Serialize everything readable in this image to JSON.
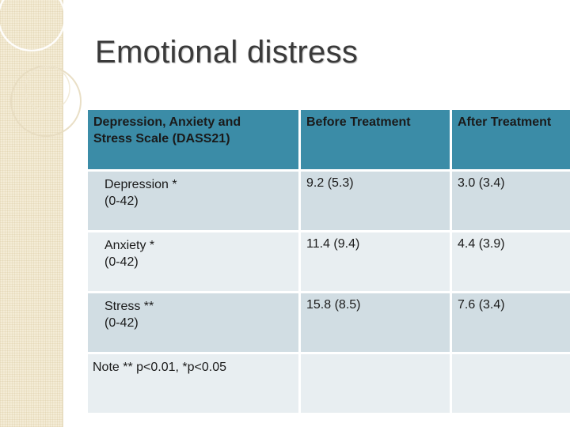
{
  "slide": {
    "title": "Emotional distress"
  },
  "table": {
    "headers": [
      [
        "Depression, Anxiety and",
        "Stress Scale (DASS21)"
      ],
      [
        "Before Treatment"
      ],
      [
        "After Treatment"
      ]
    ],
    "rows": [
      {
        "label": [
          "Depression *",
          "(0-42)"
        ],
        "before": "9.2 (5.3)",
        "after": "3.0 (3.4)"
      },
      {
        "label": [
          "Anxiety *",
          "(0-42)"
        ],
        "before": "11.4 (9.4)",
        "after": "4.4 (3.9)"
      },
      {
        "label": [
          "Stress **",
          "(0-42)"
        ],
        "before": "15.8 (8.5)",
        "after": "7.6 (3.4)"
      }
    ],
    "note": "Note   ** p<0.01, *p<0.05"
  },
  "colors": {
    "header_bg": "#3b8ca7",
    "row_dark": "#d1dde3",
    "row_light": "#e8eef1",
    "side_strip": "#f4ecd6"
  }
}
